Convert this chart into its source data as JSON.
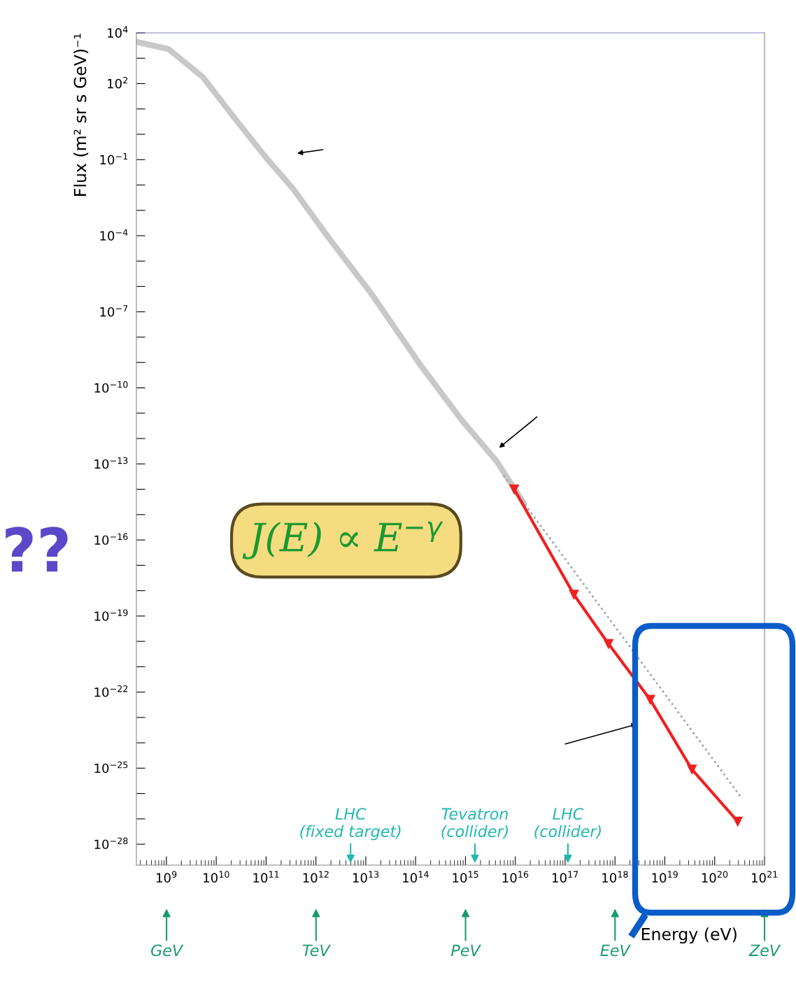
{
  "chart_data": {
    "type": "line",
    "xlabel": "Energy (eV)",
    "ylabel": "Flux (m² sr s GeV)⁻¹",
    "log": "xy",
    "grid": false,
    "xlim": [
      250000000.0,
      1e+21
    ],
    "xticks": [
      {
        "value": 1000000000.0,
        "label": "10$^{9}$"
      },
      {
        "value": 10000000000.0,
        "label": "10$^{10}$"
      },
      {
        "value": 100000000000.0,
        "label": "10$^{11}$"
      },
      {
        "value": 1000000000000.0,
        "label": "10$^{12}$"
      },
      {
        "value": 10000000000000.0,
        "label": "10$^{13}$"
      },
      {
        "value": 100000000000000.0,
        "label": "10$^{14}$"
      },
      {
        "value": 1000000000000000.0,
        "label": "10$^{15}$"
      },
      {
        "value": 1e+16,
        "label": "10$^{16}$"
      },
      {
        "value": 1e+17,
        "label": "10$^{17}$"
      },
      {
        "value": 1e+18,
        "label": "10$^{18}$"
      },
      {
        "value": 1e+19,
        "label": "10$^{19}$"
      },
      {
        "value": 1e+20,
        "label": "10$^{20}$"
      },
      {
        "value": 1e+21,
        "label": "10$^{21}$"
      }
    ],
    "ylim": [
      1.5e-29,
      10000.0
    ],
    "yticks": [
      {
        "value": 10000.0,
        "label": "10$^{4}$"
      },
      {
        "value": 1000.0,
        "label": null
      },
      {
        "value": 100.0,
        "label": "10$^{2}$"
      },
      {
        "value": 10.0,
        "label": null
      },
      {
        "value": 1.0,
        "label": null
      },
      {
        "value": 0.1,
        "label": "10$^{−1}$"
      },
      {
        "value": 0.01,
        "label": null
      },
      {
        "value": 0.001,
        "label": null
      },
      {
        "value": 0.0001,
        "label": "10$^{−4}$"
      },
      {
        "value": 1e-05,
        "label": null
      },
      {
        "value": 1e-06,
        "label": null
      },
      {
        "value": 1e-07,
        "label": "10$^{−7}$"
      },
      {
        "value": 1e-08,
        "label": null
      },
      {
        "value": 1e-09,
        "label": null
      },
      {
        "value": 1e-10,
        "label": "10$^{−10}$"
      },
      {
        "value": 1e-11,
        "label": null
      },
      {
        "value": 1e-12,
        "label": null
      },
      {
        "value": 1e-13,
        "label": "10$^{−13}$"
      },
      {
        "value": 1e-14,
        "label": null
      },
      {
        "value": 1e-15,
        "label": null
      },
      {
        "value": 1e-16,
        "label": "10$^{−16}$"
      },
      {
        "value": 1e-17,
        "label": null
      },
      {
        "value": 1e-18,
        "label": null
      },
      {
        "value": 1e-19,
        "label": "10$^{−19}$"
      },
      {
        "value": 1e-20,
        "label": null
      },
      {
        "value": 1e-21,
        "label": null
      },
      {
        "value": 1e-22,
        "label": "10$^{−22}$"
      },
      {
        "value": 1e-23,
        "label": null
      },
      {
        "value": 1e-24,
        "label": null
      },
      {
        "value": 1e-25,
        "label": "10$^{−25}$"
      },
      {
        "value": 1e-26,
        "label": null
      },
      {
        "value": 1e-27,
        "label": null
      },
      {
        "value": 1e-28,
        "label": "10$^{−28}$"
      }
    ],
    "series": [
      {
        "color": "#c8c8c8",
        "marker": "none",
        "line_style": "solid",
        "x": [
          250000000.0,
          1100000000.0,
          5400000000.0,
          27000000000.0,
          100000000000.0,
          350000000000.0,
          1800000000000.0,
          13000000000000.0,
          120000000000000.0,
          830000000000000.0,
          4200000000000000.0,
          1.5e+16
        ],
        "values": [
          4400.0,
          2300.0,
          180.0,
          3.0,
          0.12,
          0.007,
          8.3e-05,
          5.1e-07,
          8.9e-10,
          5.5e-12,
          1.3e-13,
          2.7e-15
        ]
      },
      {
        "color": "#9aa8a4",
        "marker": "none",
        "line_style": "dotted",
        "x": [
          5800000000000000.0,
          3.4e+20
        ],
        "values": [
          3.5e-14,
          7e-27
        ]
      },
      {
        "color": "#f02020",
        "marker": "triangle",
        "line_style": "solid",
        "x": [
          9500000000000000.0,
          1.5e+17,
          7.4e+17,
          5.1e+18,
          3.5e+19,
          2.9e+20
        ],
        "values": [
          1e-14,
          7e-19,
          8e-21,
          5e-23,
          8.9e-26,
          7.9e-28
        ]
      }
    ],
    "annotations": [
      "J(E) ∝ E$^{−γ}$",
      "??",
      "LHC\n(fixed target)",
      "Tevatron\n(collider)",
      "LHC\n(collider)",
      "GeV",
      "TeV",
      "PeV",
      "EeV",
      "ZeV"
    ]
  }
}
